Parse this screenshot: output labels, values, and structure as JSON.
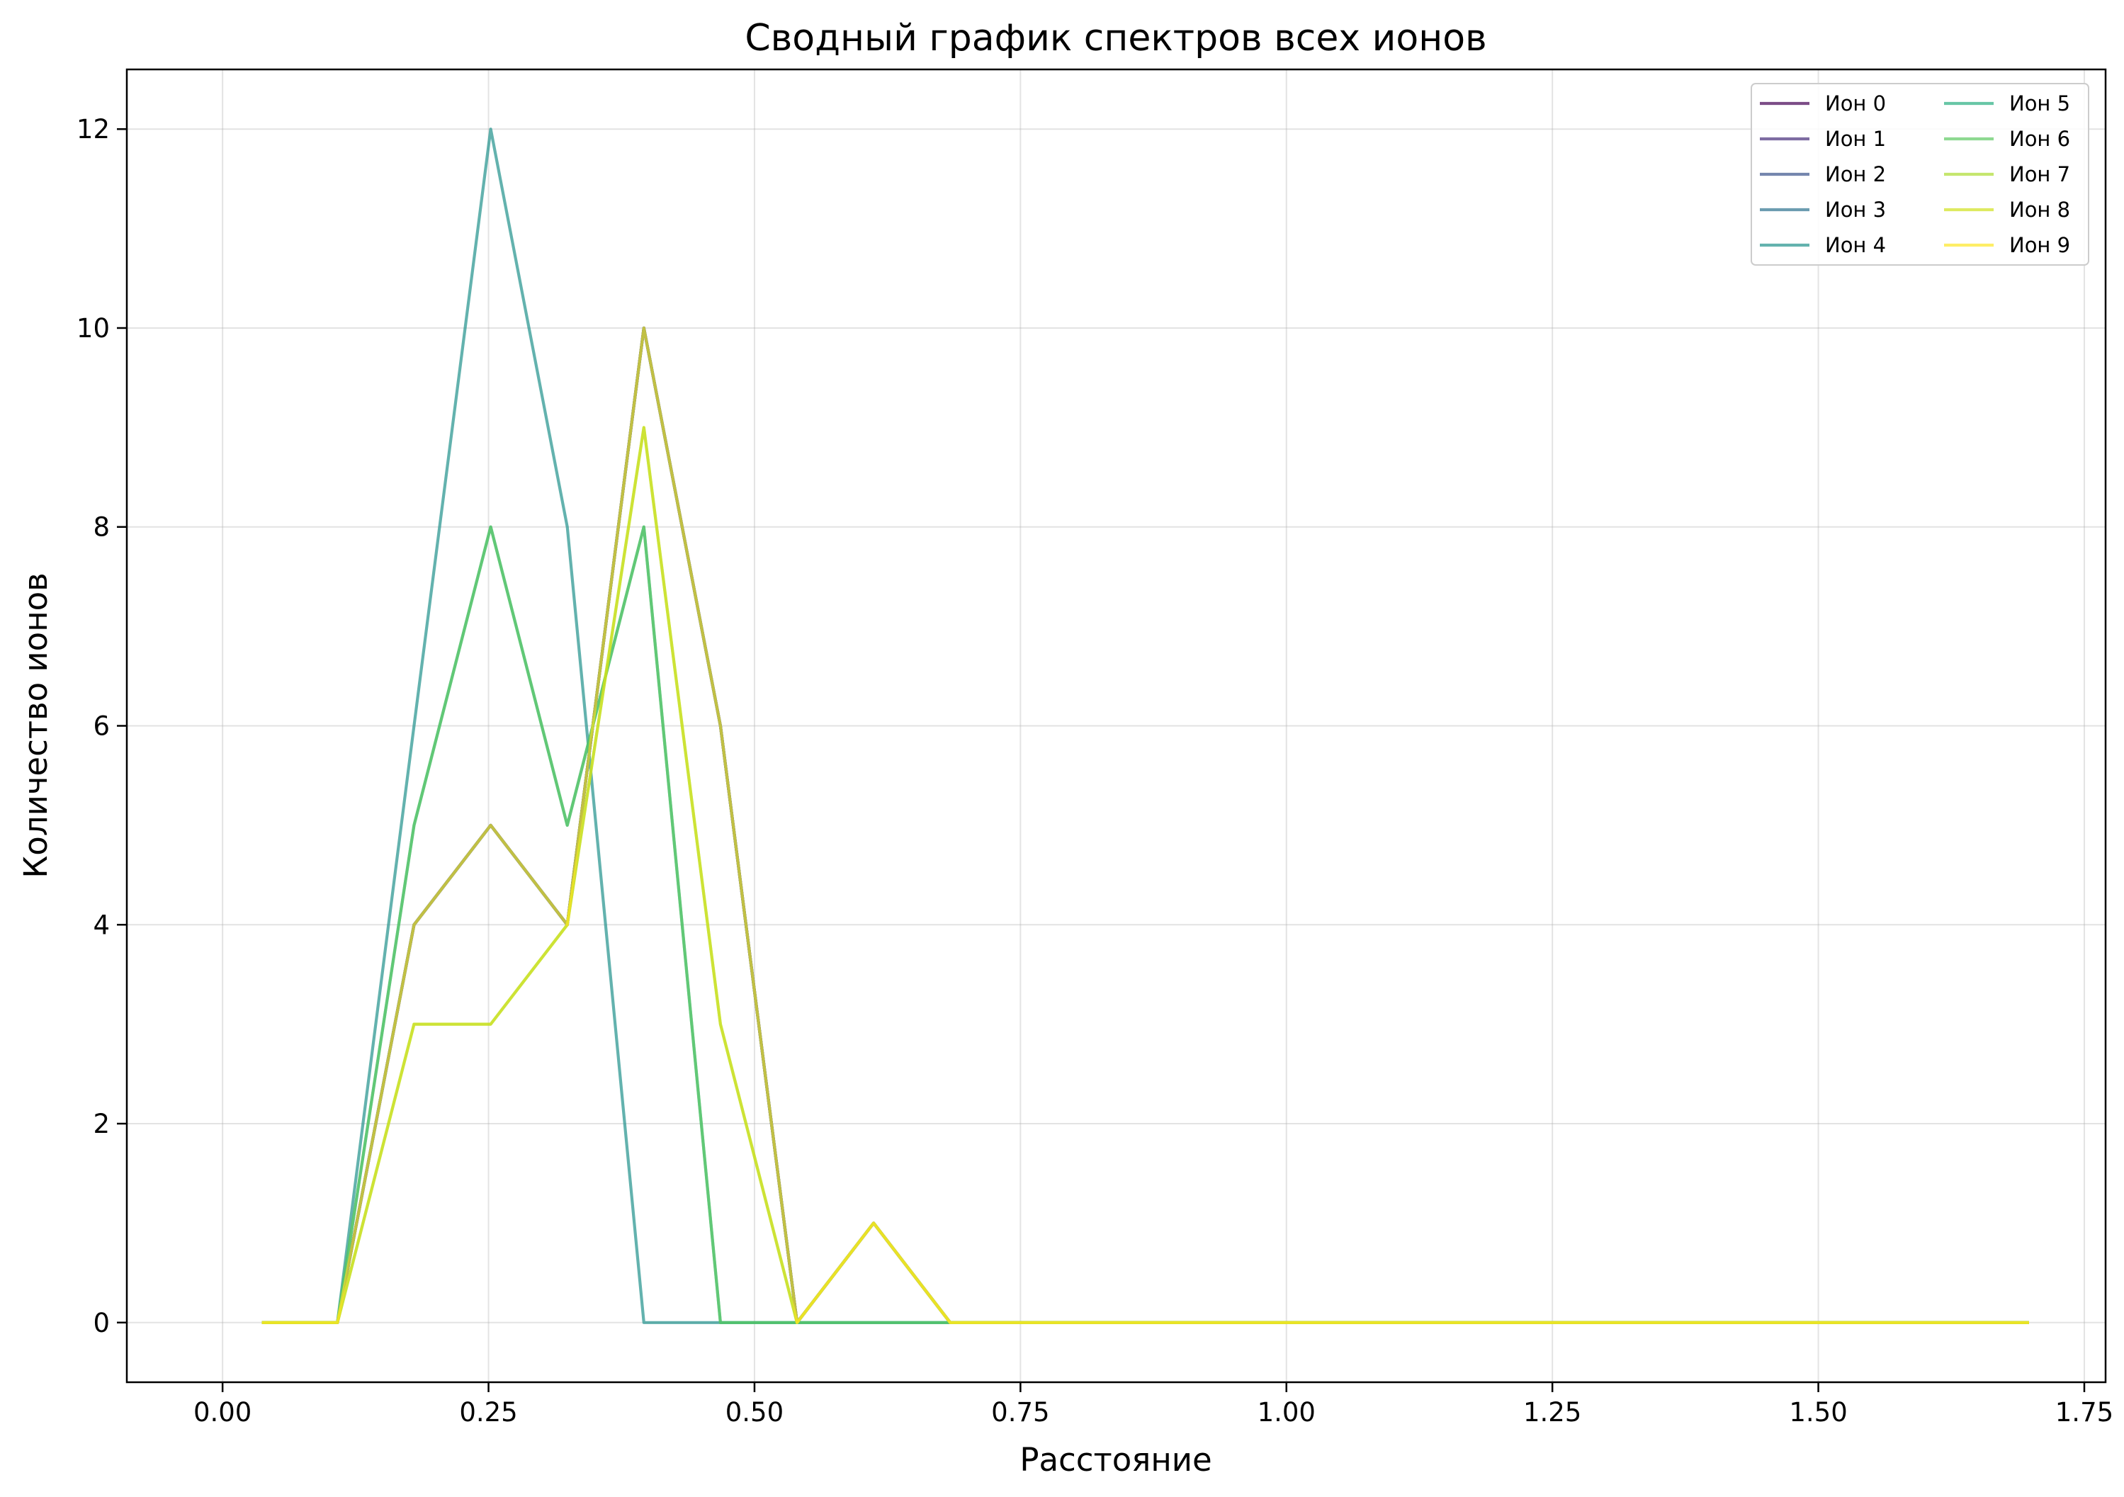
{
  "chart_data": {
    "type": "line",
    "title": "Сводный график спектров всех ионов",
    "xlabel": "Расстояние",
    "ylabel": "Количество ионов",
    "xlim": [
      -0.09,
      1.77
    ],
    "ylim": [
      -0.6,
      12.6
    ],
    "xticks": [
      "0.00",
      "0.25",
      "0.50",
      "0.75",
      "1.00",
      "1.25",
      "1.50",
      "1.75"
    ],
    "xtick_values": [
      0,
      0.25,
      0.5,
      0.75,
      1.0,
      1.25,
      1.5,
      1.75
    ],
    "yticks": [
      "0",
      "2",
      "4",
      "6",
      "8",
      "10",
      "12"
    ],
    "ytick_values": [
      0,
      2,
      4,
      6,
      8,
      10,
      12
    ],
    "grid": true,
    "legend_position": "top-right",
    "x": [
      0.037,
      0.108,
      0.18,
      0.252,
      0.324,
      0.396,
      0.468,
      0.54,
      0.612,
      0.684,
      0.756,
      0.828,
      0.9,
      0.972,
      1.044,
      1.116,
      1.188,
      1.26,
      1.332,
      1.404,
      1.476,
      1.548,
      1.62,
      1.698
    ],
    "series": [
      {
        "name": "Ион 0",
        "color": "#440154",
        "values": [
          0,
          0,
          4,
          5,
          4,
          10,
          6,
          0,
          1,
          0,
          0,
          0,
          0,
          0,
          0,
          0,
          0,
          0,
          0,
          0,
          0,
          0,
          0,
          0
        ]
      },
      {
        "name": "Ион 1",
        "color": "#472d7b",
        "values": [
          0,
          0,
          4,
          5,
          4,
          10,
          6,
          0,
          1,
          0,
          0,
          0,
          0,
          0,
          0,
          0,
          0,
          0,
          0,
          0,
          0,
          0,
          0,
          0
        ]
      },
      {
        "name": "Ион 2",
        "color": "#3b528b",
        "values": [
          0,
          0,
          4,
          5,
          4,
          10,
          6,
          0,
          1,
          0,
          0,
          0,
          0,
          0,
          0,
          0,
          0,
          0,
          0,
          0,
          0,
          0,
          0,
          0
        ]
      },
      {
        "name": "Ион 3",
        "color": "#2c728e",
        "values": [
          0,
          0,
          4,
          5,
          4,
          10,
          6,
          0,
          1,
          0,
          0,
          0,
          0,
          0,
          0,
          0,
          0,
          0,
          0,
          0,
          0,
          0,
          0,
          0
        ]
      },
      {
        "name": "Ион 4",
        "color": "#21918c",
        "values": [
          0,
          0,
          6,
          12,
          8,
          0,
          0,
          0,
          0,
          0,
          0,
          0,
          0,
          0,
          0,
          0,
          0,
          0,
          0,
          0,
          0,
          0,
          0,
          0
        ]
      },
      {
        "name": "Ион 5",
        "color": "#28ae80",
        "values": [
          0,
          0,
          5,
          8,
          5,
          8,
          0,
          0,
          0,
          0,
          0,
          0,
          0,
          0,
          0,
          0,
          0,
          0,
          0,
          0,
          0,
          0,
          0,
          0
        ]
      },
      {
        "name": "Ион 6",
        "color": "#5ec962",
        "values": [
          0,
          0,
          5,
          8,
          5,
          8,
          0,
          0,
          0,
          0,
          0,
          0,
          0,
          0,
          0,
          0,
          0,
          0,
          0,
          0,
          0,
          0,
          0,
          0
        ]
      },
      {
        "name": "Ион 7",
        "color": "#addc30",
        "values": [
          0,
          0,
          3,
          3,
          4,
          9,
          3,
          0,
          1,
          0,
          0,
          0,
          0,
          0,
          0,
          0,
          0,
          0,
          0,
          0,
          0,
          0,
          0,
          0
        ]
      },
      {
        "name": "Ион 8",
        "color": "#d0e11c",
        "values": [
          0,
          0,
          3,
          3,
          4,
          9,
          3,
          0,
          1,
          0,
          0,
          0,
          0,
          0,
          0,
          0,
          0,
          0,
          0,
          0,
          0,
          0,
          0,
          0
        ]
      },
      {
        "name": "Ион 9",
        "color": "#fde725",
        "values": [
          0,
          0,
          4,
          5,
          4,
          10,
          6,
          0,
          1,
          0,
          0,
          0,
          0,
          0,
          0,
          0,
          0,
          0,
          0,
          0,
          0,
          0,
          0,
          0
        ]
      }
    ]
  }
}
